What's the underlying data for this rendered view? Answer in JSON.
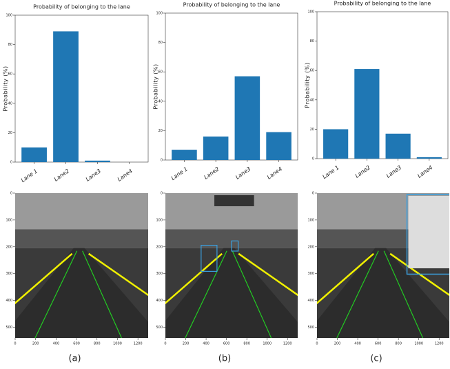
{
  "chart_data": [
    {
      "type": "bar",
      "title": "Probability of belonging to the lane",
      "y_label": "Probability (%)",
      "categories": [
        "Lane 1",
        "Lane2",
        "Lane3",
        "Lane4"
      ],
      "values": [
        10,
        89,
        1,
        0
      ],
      "color": "#1f77b4",
      "ylim": [
        0,
        100
      ],
      "yticks": [
        0,
        20,
        40,
        60,
        80,
        100
      ]
    },
    {
      "type": "bar",
      "title": "Probability of belonging to the lane",
      "y_label": "Probability (%)",
      "categories": [
        "Lane 1",
        "Lane2",
        "Lane3",
        "Lane4"
      ],
      "values": [
        7,
        16,
        57,
        19
      ],
      "color": "#1f77b4",
      "ylim": [
        0,
        100
      ],
      "yticks": [
        0,
        20,
        40,
        60,
        80,
        100
      ]
    },
    {
      "type": "bar",
      "title": "Probability of belonging to the lane",
      "y_label": "Probability (%)",
      "categories": [
        "Lane 1",
        "Lane2",
        "Lane3",
        "Lane4"
      ],
      "values": [
        20,
        61,
        17,
        1
      ],
      "color": "#1f77b4",
      "ylim": [
        0,
        100
      ],
      "yticks": [
        0,
        20,
        40,
        60,
        80,
        100
      ]
    }
  ],
  "images": [
    {
      "label": "(a)",
      "xlim": [
        0,
        1300
      ],
      "ylim": [
        0,
        540
      ],
      "xticks": [
        0,
        200,
        400,
        600,
        800,
        1000,
        1200
      ],
      "yticks": [
        0,
        100,
        200,
        300,
        400,
        500
      ]
    },
    {
      "label": "(b)",
      "xlim": [
        0,
        1300
      ],
      "ylim": [
        0,
        540
      ],
      "xticks": [
        0,
        200,
        400,
        600,
        800,
        1000,
        1200
      ],
      "yticks": [
        0,
        100,
        200,
        300,
        400,
        500
      ]
    },
    {
      "label": "(c)",
      "xlim": [
        0,
        1300
      ],
      "ylim": [
        0,
        540
      ],
      "xticks": [
        0,
        200,
        400,
        600,
        800,
        1000,
        1200
      ],
      "yticks": [
        0,
        100,
        200,
        300,
        400,
        500
      ]
    }
  ]
}
